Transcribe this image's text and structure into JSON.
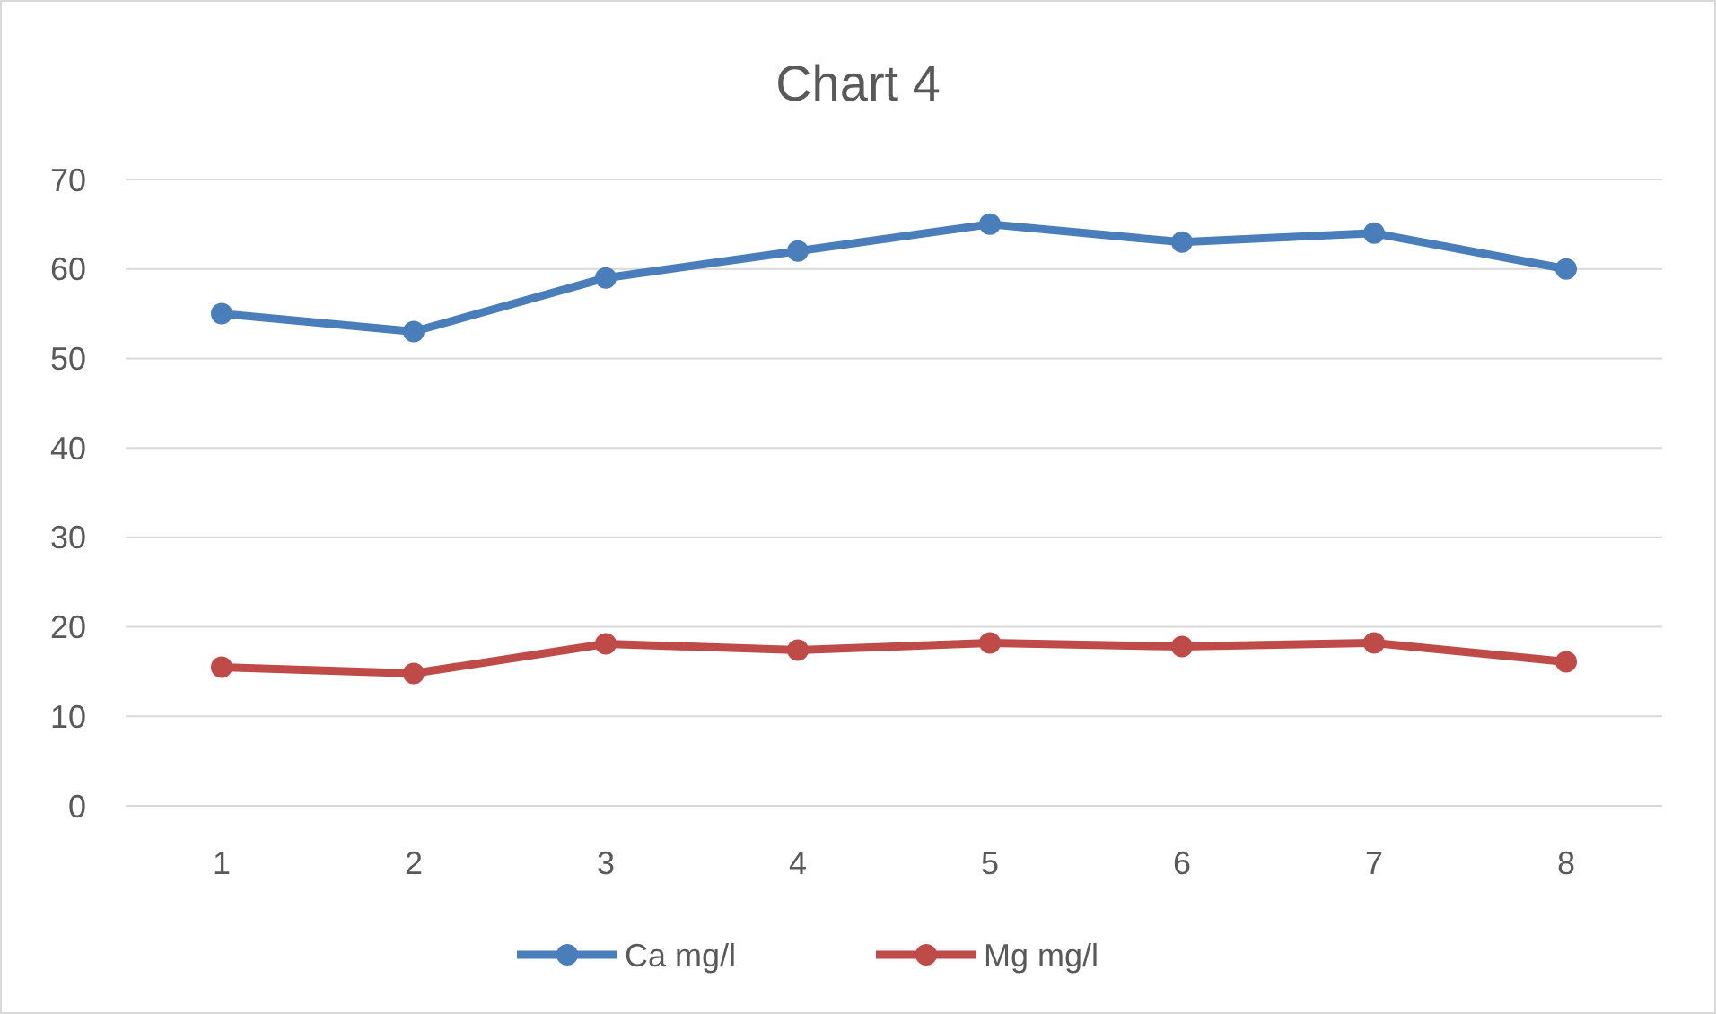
{
  "chart_data": {
    "type": "line",
    "title": "Chart 4",
    "categories": [
      "1",
      "2",
      "3",
      "4",
      "5",
      "6",
      "7",
      "8"
    ],
    "series": [
      {
        "name": "Ca mg/l",
        "color": "#4a7ebb",
        "values": [
          55,
          53,
          59,
          62,
          65,
          63,
          64,
          60
        ]
      },
      {
        "name": "Mg mg/l",
        "color": "#be4b48",
        "values": [
          15.5,
          14.8,
          18.1,
          17.4,
          18.2,
          17.8,
          18.2,
          16.1
        ]
      }
    ],
    "ylim": [
      0,
      70
    ],
    "yticks": [
      0,
      10,
      20,
      30,
      40,
      50,
      60,
      70
    ],
    "grid": "y",
    "legend": "bottom",
    "marker": "circle",
    "line_style": "solid"
  }
}
